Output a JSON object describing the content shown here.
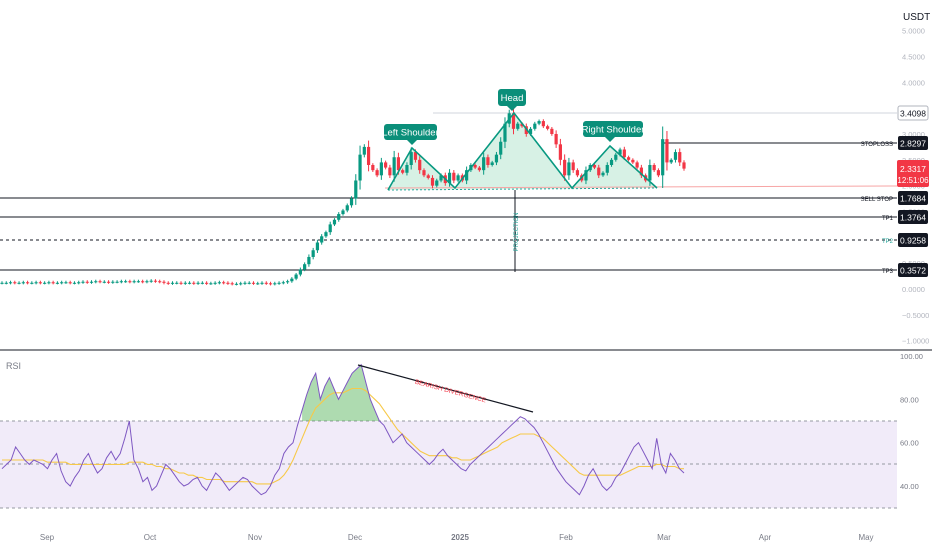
{
  "chart_data": [
    {
      "type": "candlestick",
      "title": "",
      "currency": "USDT",
      "x_months": [
        "Sep",
        "Oct",
        "Nov",
        "Dec",
        "2025",
        "Feb",
        "Mar",
        "Apr",
        "May"
      ],
      "y_ticks": [
        "5.0000",
        "4.5000",
        "4.0000",
        "3.5000",
        "3.0000",
        "2.5000",
        "2.0000",
        "1.5000",
        "1.0000",
        "0.5000",
        "0.0000",
        "−0.5000",
        "−1.0000"
      ],
      "ylim": [
        -1.0,
        5.0
      ],
      "current_price": "2.3317",
      "countdown": "12:51:06",
      "price_levels": [
        {
          "name": "STOPLOSS",
          "value": "2.8297"
        },
        {
          "name": "SELL STOP",
          "value": "1.7684"
        },
        {
          "name": "TP1",
          "value": "1.3764"
        },
        {
          "name": "TP2",
          "value": "0.9258"
        },
        {
          "name": "TP3",
          "value": "0.3572"
        }
      ],
      "high_label": "3.4098",
      "pattern_labels": {
        "left": "Left Shoulder",
        "head": "Head",
        "right": "Right Shoulder"
      },
      "projection_label": "PROJECTION",
      "close_series": [
        0.12,
        0.12,
        0.13,
        0.12,
        0.12,
        0.13,
        0.12,
        0.12,
        0.13,
        0.12,
        0.12,
        0.13,
        0.12,
        0.12,
        0.13,
        0.13,
        0.12,
        0.12,
        0.13,
        0.14,
        0.13,
        0.14,
        0.15,
        0.14,
        0.14,
        0.13,
        0.14,
        0.14,
        0.15,
        0.15,
        0.14,
        0.15,
        0.15,
        0.14,
        0.15,
        0.16,
        0.15,
        0.14,
        0.12,
        0.11,
        0.12,
        0.12,
        0.11,
        0.12,
        0.12,
        0.11,
        0.12,
        0.12,
        0.11,
        0.11,
        0.12,
        0.13,
        0.12,
        0.11,
        0.1,
        0.1,
        0.11,
        0.12,
        0.12,
        0.11,
        0.11,
        0.12,
        0.11,
        0.1,
        0.11,
        0.12,
        0.13,
        0.15,
        0.2,
        0.28,
        0.38,
        0.48,
        0.62,
        0.75,
        0.9,
        1.02,
        1.1,
        1.25,
        1.34,
        1.45,
        1.52,
        1.62,
        1.75,
        2.1,
        2.6,
        2.75,
        2.4,
        2.3,
        2.2,
        2.45,
        2.35,
        2.2,
        2.55,
        2.3,
        2.25,
        2.4,
        2.65,
        2.5,
        2.3,
        2.2,
        2.15,
        2.0,
        2.1,
        2.2,
        2.05,
        2.25,
        2.1,
        2.2,
        2.1,
        2.3,
        2.4,
        2.35,
        2.3,
        2.55,
        2.4,
        2.45,
        2.6,
        2.85,
        3.2,
        3.4,
        3.1,
        3.2,
        3.15,
        3.0,
        3.1,
        3.2,
        3.25,
        3.15,
        3.1,
        3.0,
        2.8,
        2.5,
        2.2,
        2.45,
        2.3,
        2.2,
        2.1,
        2.3,
        2.4,
        2.35,
        2.2,
        2.25,
        2.4,
        2.5,
        2.6,
        2.7,
        2.55,
        2.5,
        2.45,
        2.35,
        2.2,
        2.1,
        2.4,
        2.3,
        2.2,
        2.9,
        2.45,
        2.5,
        2.65,
        2.45,
        2.33
      ]
    },
    {
      "type": "line",
      "title": "RSI",
      "y_ticks": [
        "100.00",
        "80.00",
        "60.00",
        "40.00"
      ],
      "ylim": [
        25,
        100
      ],
      "annotation": "BEARISH DIVERGENCE",
      "rsi_series": [
        48,
        50,
        52,
        58,
        55,
        52,
        50,
        52,
        51,
        50,
        48,
        52,
        55,
        47,
        42,
        40,
        44,
        47,
        52,
        55,
        50,
        46,
        48,
        53,
        56,
        52,
        55,
        62,
        70,
        52,
        48,
        42,
        44,
        38,
        40,
        45,
        50,
        48,
        45,
        42,
        40,
        41,
        43,
        44,
        40,
        38,
        42,
        46,
        44,
        41,
        38,
        40,
        42,
        44,
        43,
        40,
        38,
        36,
        37,
        40,
        45,
        48,
        55,
        58,
        60,
        68,
        75,
        82,
        88,
        92,
        80,
        86,
        90,
        85,
        80,
        84,
        88,
        92,
        94,
        96,
        88,
        80,
        75,
        70,
        68,
        64,
        60,
        62,
        64,
        60,
        58,
        56,
        54,
        52,
        50,
        52,
        55,
        57,
        54,
        52,
        50,
        48,
        47,
        50,
        52,
        54,
        56,
        58,
        60,
        62,
        64,
        66,
        68,
        70,
        72,
        71,
        69,
        67,
        64,
        60,
        56,
        52,
        48,
        45,
        42,
        40,
        38,
        36,
        40,
        45,
        48,
        44,
        40,
        38,
        40,
        44,
        46,
        50,
        54,
        58,
        60,
        56,
        52,
        48,
        62,
        50,
        46,
        55,
        52,
        48,
        46
      ],
      "ma_series": [
        52,
        52,
        52,
        52,
        52,
        52,
        52,
        52,
        52,
        52,
        51,
        51,
        51,
        51,
        51,
        50,
        50,
        50,
        50,
        50,
        50,
        50,
        50,
        50,
        50,
        50,
        50,
        50,
        51,
        51,
        51,
        51,
        50,
        50,
        49,
        49,
        48,
        48,
        47,
        46,
        46,
        45,
        45,
        44,
        44,
        43,
        43,
        43,
        43,
        42,
        42,
        42,
        42,
        42,
        42,
        42,
        41,
        41,
        41,
        41,
        42,
        43,
        45,
        48,
        52,
        57,
        62,
        67,
        72,
        76,
        78,
        80,
        82,
        83,
        83,
        83,
        84,
        85,
        85,
        85,
        84,
        82,
        80,
        78,
        75,
        72,
        69,
        66,
        64,
        62,
        60,
        58,
        56,
        55,
        54,
        54,
        54,
        54,
        54,
        53,
        53,
        52,
        52,
        52,
        53,
        54,
        55,
        56,
        57,
        58,
        60,
        61,
        62,
        63,
        64,
        64,
        64,
        64,
        63,
        62,
        60,
        58,
        56,
        54,
        52,
        50,
        48,
        46,
        45,
        45,
        45,
        45,
        45,
        45,
        45,
        45,
        45,
        46,
        47,
        48,
        49,
        49,
        49,
        49,
        50,
        50,
        49,
        49,
        49,
        48,
        48
      ]
    }
  ]
}
